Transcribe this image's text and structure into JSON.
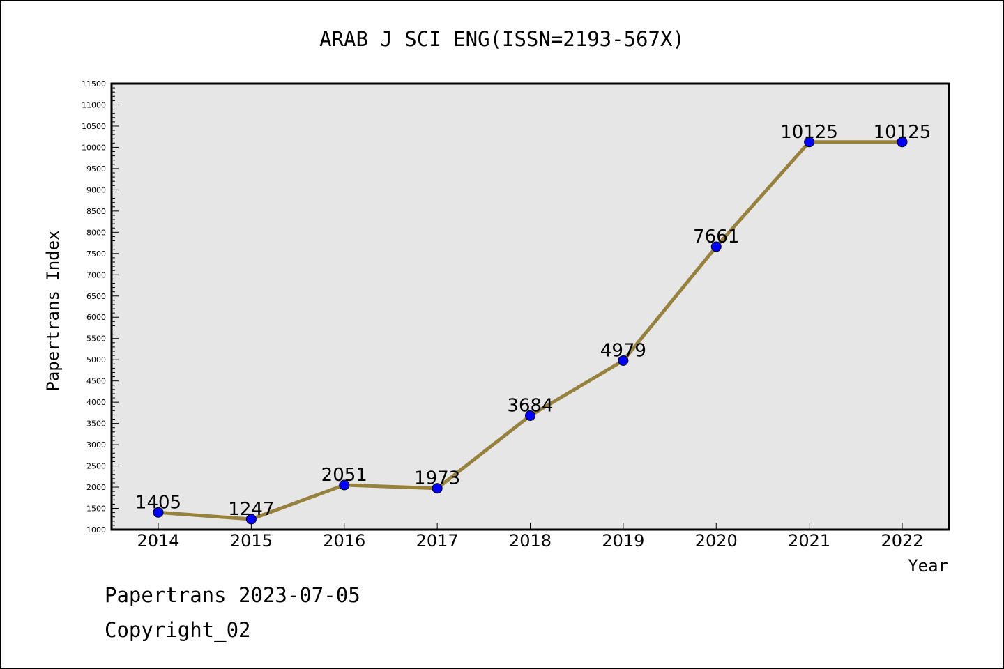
{
  "chart_data": {
    "type": "line",
    "title": "ARAB J SCI ENG(ISSN=2193-567X)",
    "xlabel": "Year",
    "ylabel": "Papertrans Index",
    "categories": [
      "2014",
      "2015",
      "2016",
      "2017",
      "2018",
      "2019",
      "2020",
      "2021",
      "2022"
    ],
    "series": [
      {
        "values": [
          1405,
          1247,
          2051,
          1973,
          3684,
          4979,
          7661,
          10125,
          10125
        ]
      }
    ],
    "data_labels": [
      "1405",
      "1247",
      "2051",
      "1973",
      "3684",
      "4979",
      "7661",
      "10125",
      "10125"
    ],
    "ylim": [
      1000,
      11500
    ],
    "yticks": [
      1000,
      1500,
      2000,
      2500,
      3000,
      3500,
      4000,
      4500,
      5000,
      5500,
      6000,
      6500,
      7000,
      7500,
      8000,
      8500,
      9000,
      9500,
      10000,
      10500,
      11000,
      11500
    ],
    "ytick_labels": [
      "1000",
      "1500",
      "2000",
      "2500",
      "3000",
      "3500",
      "4000",
      "4500",
      "5000",
      "5500",
      "6000",
      "6500",
      "7000",
      "7500",
      "8000",
      "8500",
      "9000",
      "9500",
      "10000",
      "10500",
      "11000",
      "11500"
    ],
    "grid": false,
    "legend": "none",
    "colors": {
      "line": "#96823c",
      "marker": "#0000ff",
      "plot_background": "#e6e6e6"
    }
  },
  "footer": {
    "line1": "Papertrans 2023-07-05",
    "line2": "Copyright_02"
  }
}
